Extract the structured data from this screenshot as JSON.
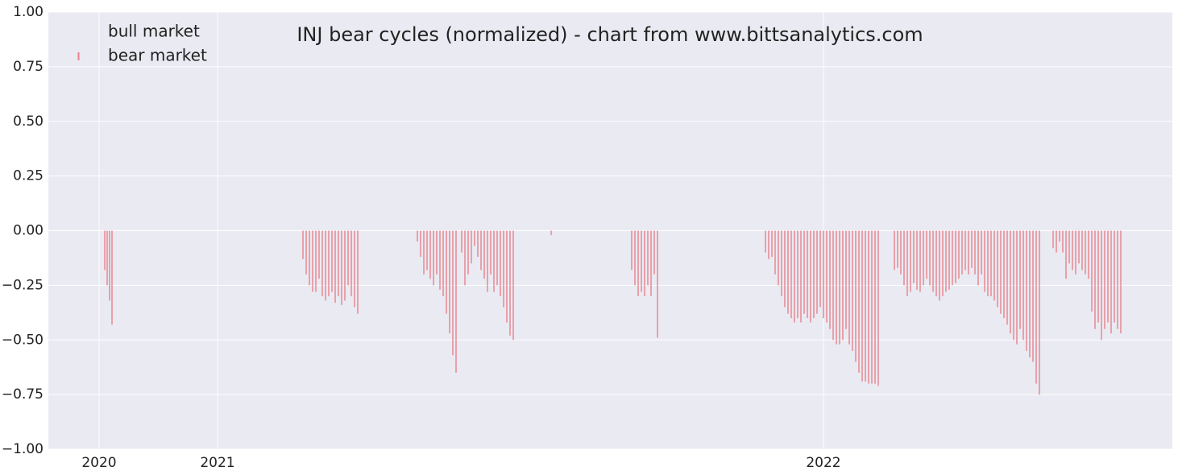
{
  "chart_data": {
    "type": "bar",
    "title": "INJ bear cycles (normalized)  - chart from www.bittsanalytics.com",
    "xlim": [
      0,
      1395
    ],
    "ylim": [
      -1,
      1
    ],
    "xticks": [
      {
        "value": 63,
        "label": "2020"
      },
      {
        "value": 210,
        "label": "2021"
      },
      {
        "value": 962,
        "label": "2022"
      }
    ],
    "yticks": [
      {
        "value": -1,
        "label": "−1.00"
      },
      {
        "value": -0.75,
        "label": "−0.75"
      },
      {
        "value": -0.5,
        "label": "−0.50"
      },
      {
        "value": -0.25,
        "label": "−0.25"
      },
      {
        "value": 0,
        "label": "0.00"
      },
      {
        "value": 0.25,
        "label": "0.25"
      },
      {
        "value": 0.5,
        "label": "0.50"
      },
      {
        "value": 0.75,
        "label": "0.75"
      },
      {
        "value": 1,
        "label": "1.00"
      }
    ],
    "grid": true,
    "legend": "upper left",
    "series": [
      {
        "name": "bull market",
        "color": "#2ca02c",
        "x": [],
        "values": []
      },
      {
        "name": "bear market",
        "color": "#e8828c",
        "x": [
          70,
          73,
          76,
          79,
          316,
          320,
          324,
          328,
          332,
          336,
          340,
          344,
          348,
          352,
          356,
          360,
          364,
          368,
          372,
          376,
          380,
          384,
          458,
          462,
          466,
          470,
          474,
          478,
          482,
          486,
          490,
          494,
          498,
          502,
          506,
          513,
          517,
          521,
          525,
          529,
          533,
          537,
          541,
          545,
          549,
          553,
          557,
          561,
          565,
          569,
          573,
          577,
          624,
          724,
          728,
          732,
          736,
          740,
          744,
          748,
          752,
          756,
          890,
          894,
          898,
          902,
          906,
          910,
          914,
          918,
          922,
          926,
          930,
          934,
          938,
          942,
          946,
          950,
          954,
          958,
          962,
          966,
          970,
          974,
          978,
          982,
          986,
          990,
          994,
          998,
          1002,
          1006,
          1010,
          1014,
          1018,
          1022,
          1026,
          1030,
          1050,
          1054,
          1058,
          1062,
          1066,
          1070,
          1074,
          1078,
          1082,
          1086,
          1090,
          1094,
          1098,
          1102,
          1106,
          1110,
          1114,
          1118,
          1122,
          1126,
          1130,
          1134,
          1138,
          1142,
          1146,
          1150,
          1154,
          1158,
          1162,
          1166,
          1170,
          1174,
          1178,
          1182,
          1186,
          1190,
          1194,
          1198,
          1202,
          1206,
          1210,
          1214,
          1218,
          1222,
          1226,
          1230,
          1247,
          1251,
          1255,
          1259,
          1263,
          1267,
          1271,
          1275,
          1279,
          1283,
          1287,
          1291,
          1295,
          1299,
          1303,
          1307,
          1311,
          1315,
          1319,
          1323,
          1327,
          1331
        ],
        "values": [
          -0.18,
          -0.25,
          -0.32,
          -0.43,
          -0.13,
          -0.2,
          -0.25,
          -0.28,
          -0.28,
          -0.22,
          -0.3,
          -0.32,
          -0.3,
          -0.28,
          -0.33,
          -0.3,
          -0.34,
          -0.32,
          -0.25,
          -0.3,
          -0.35,
          -0.38,
          -0.05,
          -0.12,
          -0.2,
          -0.18,
          -0.22,
          -0.25,
          -0.2,
          -0.27,
          -0.3,
          -0.38,
          -0.47,
          -0.57,
          -0.65,
          -0.1,
          -0.25,
          -0.2,
          -0.15,
          -0.07,
          -0.12,
          -0.18,
          -0.22,
          -0.28,
          -0.2,
          -0.28,
          -0.25,
          -0.3,
          -0.35,
          -0.42,
          -0.48,
          -0.5,
          -0.02,
          -0.18,
          -0.25,
          -0.3,
          -0.28,
          -0.3,
          -0.25,
          -0.3,
          -0.2,
          -0.49,
          -0.1,
          -0.13,
          -0.12,
          -0.2,
          -0.25,
          -0.3,
          -0.35,
          -0.38,
          -0.4,
          -0.42,
          -0.4,
          -0.42,
          -0.38,
          -0.4,
          -0.42,
          -0.4,
          -0.38,
          -0.35,
          -0.4,
          -0.42,
          -0.45,
          -0.5,
          -0.52,
          -0.52,
          -0.5,
          -0.45,
          -0.52,
          -0.55,
          -0.6,
          -0.65,
          -0.69,
          -0.69,
          -0.7,
          -0.7,
          -0.7,
          -0.71,
          -0.18,
          -0.17,
          -0.2,
          -0.25,
          -0.3,
          -0.28,
          -0.24,
          -0.27,
          -0.28,
          -0.25,
          -0.22,
          -0.25,
          -0.28,
          -0.3,
          -0.32,
          -0.3,
          -0.28,
          -0.27,
          -0.25,
          -0.24,
          -0.22,
          -0.2,
          -0.18,
          -0.2,
          -0.17,
          -0.2,
          -0.25,
          -0.2,
          -0.28,
          -0.3,
          -0.3,
          -0.32,
          -0.35,
          -0.38,
          -0.4,
          -0.43,
          -0.47,
          -0.5,
          -0.52,
          -0.45,
          -0.5,
          -0.55,
          -0.58,
          -0.6,
          -0.7,
          -0.75,
          -0.08,
          -0.1,
          -0.05,
          -0.1,
          -0.22,
          -0.15,
          -0.18,
          -0.2,
          -0.15,
          -0.18,
          -0.2,
          -0.22,
          -0.37,
          -0.45,
          -0.42,
          -0.5,
          -0.45,
          -0.42,
          -0.47,
          -0.42,
          -0.45,
          -0.47
        ]
      }
    ]
  }
}
